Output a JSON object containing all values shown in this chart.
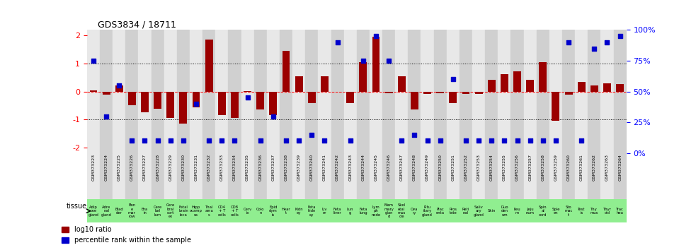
{
  "title": "GDS3834 / 18711",
  "gsm_ids": [
    "GSM373223",
    "GSM373224",
    "GSM373225",
    "GSM373226",
    "GSM373227",
    "GSM373228",
    "GSM373229",
    "GSM373230",
    "GSM373231",
    "GSM373232",
    "GSM373233",
    "GSM373234",
    "GSM373235",
    "GSM373236",
    "GSM373237",
    "GSM373238",
    "GSM373239",
    "GSM373240",
    "GSM373241",
    "GSM373242",
    "GSM373243",
    "GSM373244",
    "GSM373245",
    "GSM373246",
    "GSM373247",
    "GSM373248",
    "GSM373249",
    "GSM373250",
    "GSM373251",
    "GSM373252",
    "GSM373253",
    "GSM373254",
    "GSM373255",
    "GSM373256",
    "GSM373257",
    "GSM373258",
    "GSM373259",
    "GSM373260",
    "GSM373261",
    "GSM373262",
    "GSM373263",
    "GSM373264"
  ],
  "tissues": [
    "Adip\nose\ngland",
    "Adre\nnal\ngland",
    "Blad\nder",
    "Bon\ne\nmar\nrow",
    "Bra\nin",
    "Cere\nbel\nlum",
    "Cere\nbral\ncort\nex",
    "Fetal\nbrain\nloca",
    "Hipp\nocamp\nus",
    "Thal\namu\ns",
    "CD4\n+ T\ncells",
    "CD8\n+ T\ncells",
    "Cerv\nix",
    "Colo\nn",
    "Epid\ndym\nis",
    "Hear\nt",
    "Kidn\ney",
    "Feta\nkidn\ney",
    "Liv\ner",
    "Feta\nliver",
    "Lun\ng",
    "Feta\nlung",
    "Lym\nph\nnode",
    "Mam\nmary\nglan\nd",
    "Skel\netal\nmus\ncle",
    "Ova\nry",
    "Pitu\nitary\ngland",
    "Plac\nenta",
    "Pros\ntate",
    "Reti\nnal",
    "Saliv\nary\ngland",
    "Skin",
    "Duo\nden\num",
    "Ileu\nm",
    "Jeju\nnum",
    "Spin\nal\ncord",
    "Sple\nen",
    "Sto\nmac\nt",
    "Test\nis",
    "Thy\nmus",
    "Thyr\noid",
    "Trac\nhea"
  ],
  "log10_ratio": [
    0.05,
    -0.12,
    0.22,
    -0.48,
    -0.75,
    -0.62,
    -0.95,
    -1.15,
    -0.55,
    1.85,
    -0.85,
    -0.95,
    0.02,
    -0.65,
    -0.85,
    1.45,
    0.55,
    -0.4,
    0.55,
    0.0,
    -0.42,
    1.05,
    1.95,
    -0.05,
    0.55,
    -0.65,
    -0.08,
    -0.05,
    -0.42,
    -0.08,
    -0.08,
    0.42,
    0.62,
    0.72,
    0.42,
    1.05,
    -1.05,
    -0.12,
    0.35,
    0.22,
    0.3,
    0.28
  ],
  "percentile_rank": [
    75,
    30,
    55,
    10,
    10,
    10,
    10,
    10,
    40,
    10,
    10,
    10,
    45,
    10,
    30,
    10,
    10,
    15,
    10,
    90,
    10,
    75,
    95,
    75,
    10,
    15,
    10,
    10,
    60,
    10,
    10,
    10,
    10,
    10,
    10,
    10,
    10,
    90,
    10,
    85,
    90,
    95
  ],
  "bar_color": "#9B0000",
  "dot_color": "#0000CC",
  "bg_color_light": "#E8E8E8",
  "bg_color_dark": "#D0D0D0",
  "tissue_bg": "#90EE90",
  "ylim": [
    -2.2,
    2.2
  ],
  "y_left_ticks": [
    -2,
    -1,
    0,
    1,
    2
  ],
  "y_right_ticks": [
    0,
    25,
    50,
    75,
    100
  ],
  "hline_vals": [
    -1.0,
    0.0,
    1.0
  ],
  "legend_log10": "log10 ratio",
  "legend_pct": "percentile rank within the sample"
}
